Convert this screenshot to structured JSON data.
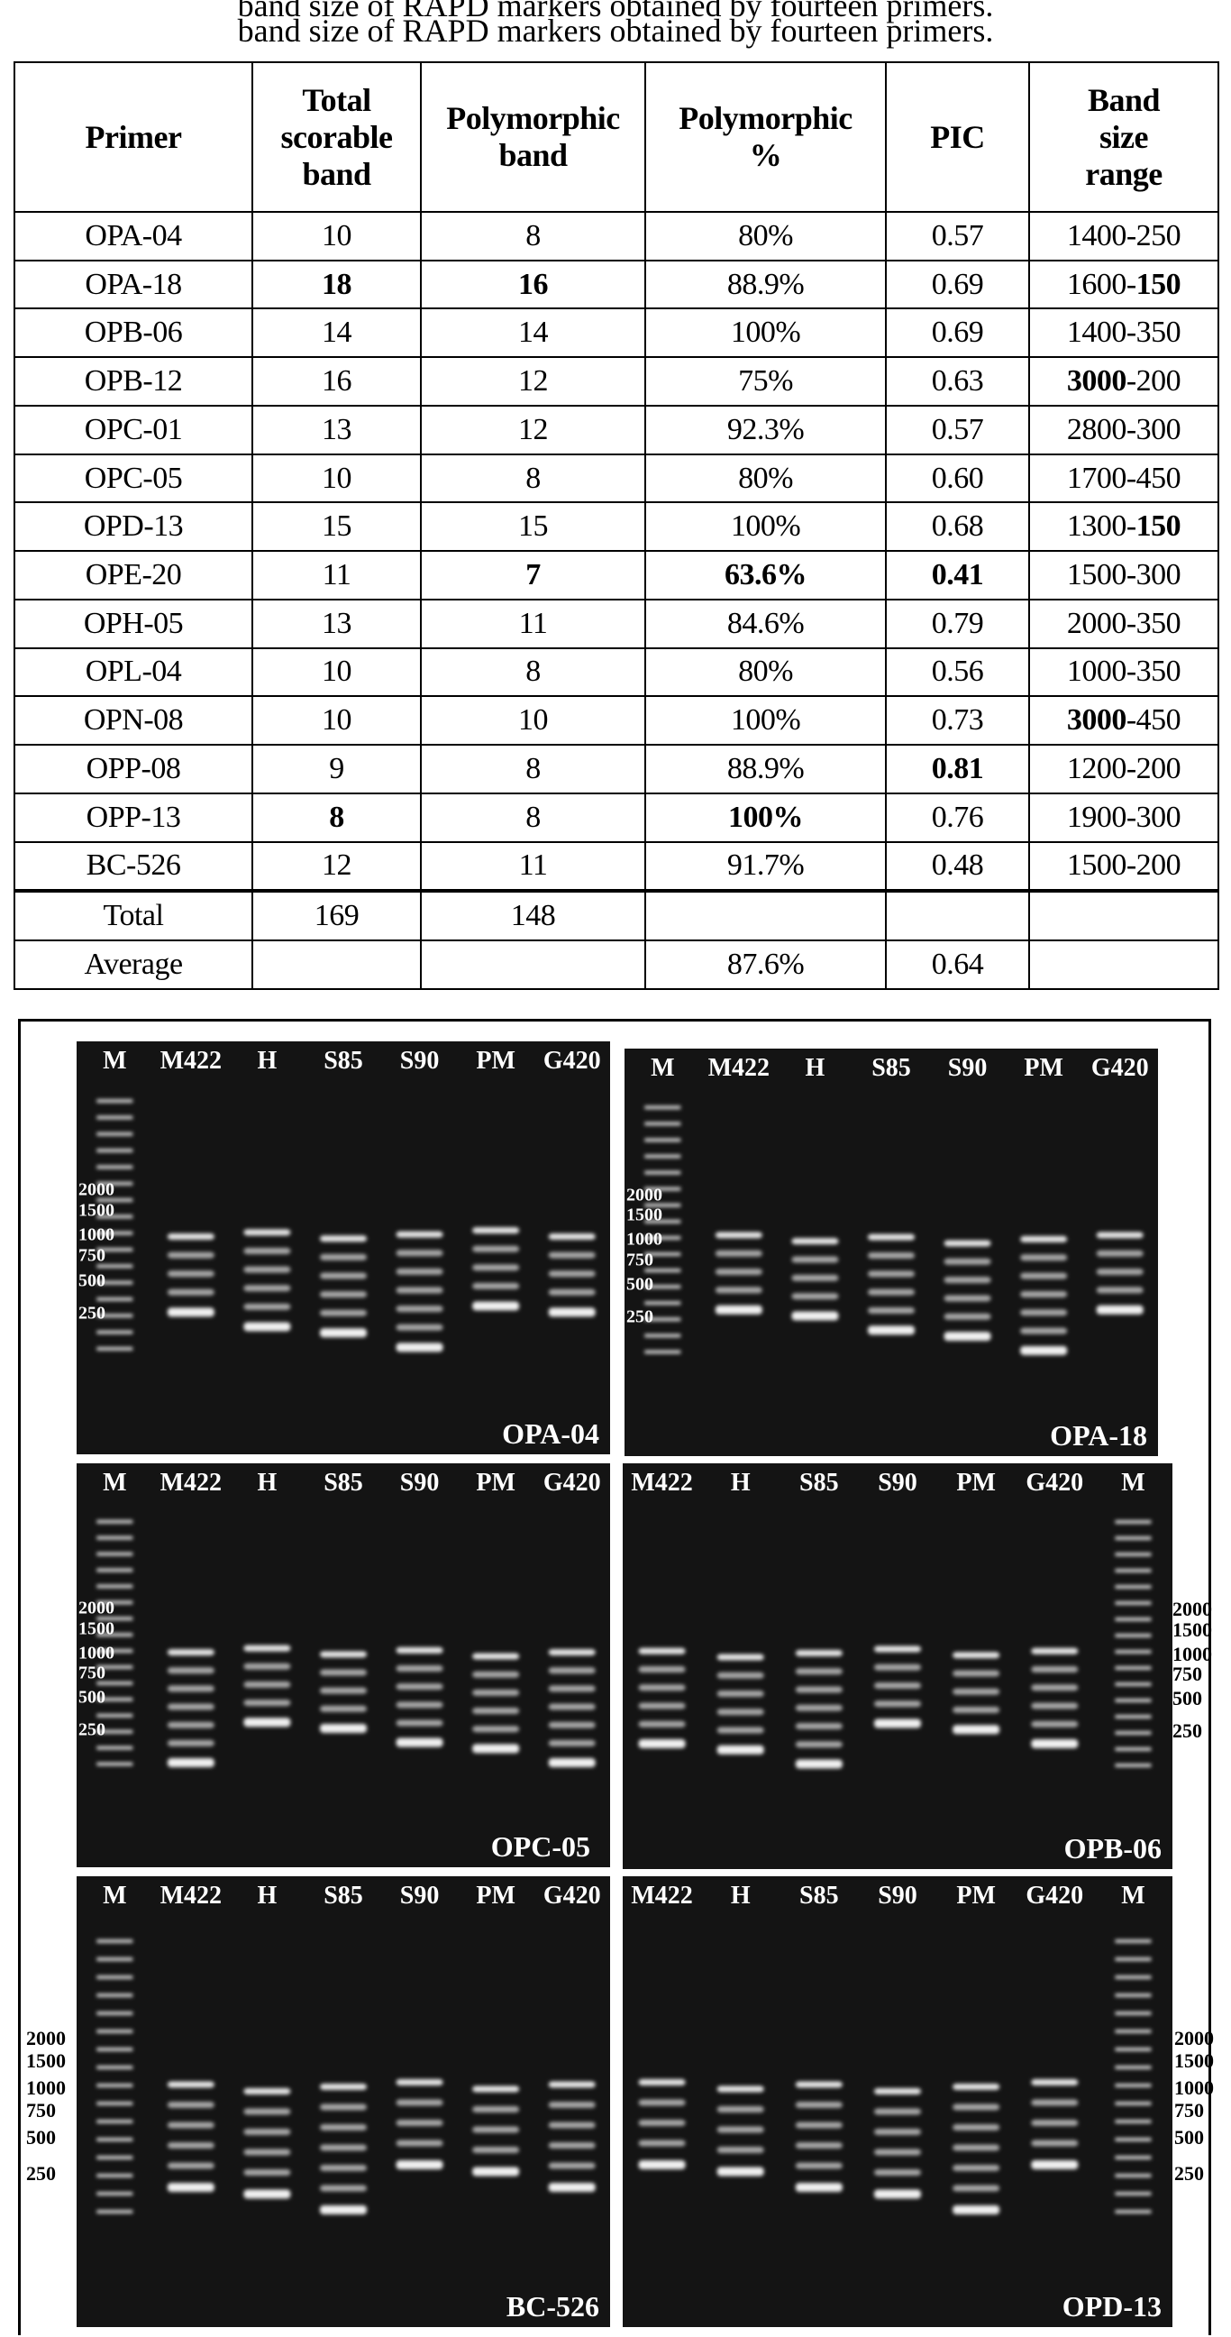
{
  "caption": {
    "line1": "band size of RAPD markers obtained by fourteen primers.",
    "line2": "band size of RAPD markers obtained by fourteen primers."
  },
  "table": {
    "headers": [
      "Primer",
      "Total scorable band",
      "Polymorphic band",
      "Polymorphic %",
      "PIC",
      "Band size range"
    ],
    "rows": [
      {
        "primer": "OPA-04",
        "total": "10",
        "poly": "8",
        "pct": "80%",
        "pic": "0.57",
        "range": "1400-250",
        "bold": []
      },
      {
        "primer": "OPA-18",
        "total": "18",
        "poly": "16",
        "pct": "88.9%",
        "pic": "0.69",
        "range": "1600-150",
        "bold": [
          "total",
          "poly",
          "range_low"
        ]
      },
      {
        "primer": "OPB-06",
        "total": "14",
        "poly": "14",
        "pct": "100%",
        "pic": "0.69",
        "range": "1400-350",
        "bold": []
      },
      {
        "primer": "OPB-12",
        "total": "16",
        "poly": "12",
        "pct": "75%",
        "pic": "0.63",
        "range": "3000-200",
        "bold": [
          "range_high"
        ]
      },
      {
        "primer": "OPC-01",
        "total": "13",
        "poly": "12",
        "pct": "92.3%",
        "pic": "0.57",
        "range": "2800-300",
        "bold": []
      },
      {
        "primer": "OPC-05",
        "total": "10",
        "poly": "8",
        "pct": "80%",
        "pic": "0.60",
        "range": "1700-450",
        "bold": []
      },
      {
        "primer": "OPD-13",
        "total": "15",
        "poly": "15",
        "pct": "100%",
        "pic": "0.68",
        "range": "1300-150",
        "bold": [
          "range_low"
        ]
      },
      {
        "primer": "OPE-20",
        "total": "11",
        "poly": "7",
        "pct": "63.6%",
        "pic": "0.41",
        "range": "1500-300",
        "bold": [
          "poly",
          "pct",
          "pic"
        ]
      },
      {
        "primer": "OPH-05",
        "total": "13",
        "poly": "11",
        "pct": "84.6%",
        "pic": "0.79",
        "range": "2000-350",
        "bold": []
      },
      {
        "primer": "OPL-04",
        "total": "10",
        "poly": "8",
        "pct": "80%",
        "pic": "0.56",
        "range": "1000-350",
        "bold": []
      },
      {
        "primer": "OPN-08",
        "total": "10",
        "poly": "10",
        "pct": "100%",
        "pic": "0.73",
        "range": "3000-450",
        "bold": [
          "range_high"
        ]
      },
      {
        "primer": "OPP-08",
        "total": "9",
        "poly": "8",
        "pct": "88.9%",
        "pic": "0.81",
        "range": "1200-200",
        "bold": [
          "pic"
        ]
      },
      {
        "primer": "OPP-13",
        "total": "8",
        "poly": "8",
        "pct": "100%",
        "pic": "0.76",
        "range": "1900-300",
        "bold": [
          "total",
          "pct"
        ]
      },
      {
        "primer": "BC-526",
        "total": "12",
        "poly": "11",
        "pct": "91.7%",
        "pic": "0.48",
        "range": "1500-200",
        "bold": []
      }
    ],
    "total": {
      "label": "Total",
      "total": "169",
      "poly": "148",
      "pct": "",
      "pic": "",
      "range": ""
    },
    "average": {
      "label": "Average",
      "total": "",
      "poly": "",
      "pct": "87.6%",
      "pic": "0.64",
      "range": ""
    }
  },
  "gels": {
    "ladder_sizes": [
      "2000",
      "1500",
      "1000",
      "750",
      "500",
      "250"
    ],
    "panels": [
      {
        "primer": "OPA-04",
        "lanes": [
          "M",
          "M422",
          "H",
          "S85",
          "S90",
          "PM",
          "G420"
        ]
      },
      {
        "primer": "OPA-18",
        "lanes": [
          "M",
          "M422",
          "H",
          "S85",
          "S90",
          "PM",
          "G420"
        ]
      },
      {
        "primer": "OPC-05",
        "lanes": [
          "M",
          "M422",
          "H",
          "S85",
          "S90",
          "PM",
          "G420"
        ]
      },
      {
        "primer": "OPB-06",
        "lanes": [
          "M422",
          "H",
          "S85",
          "S90",
          "PM",
          "G420",
          "M"
        ]
      },
      {
        "primer": "BC-526",
        "lanes": [
          "M",
          "M422",
          "H",
          "S85",
          "S90",
          "PM",
          "G420"
        ]
      },
      {
        "primer": "OPD-13",
        "lanes": [
          "M422",
          "H",
          "S85",
          "S90",
          "PM",
          "G420",
          "M"
        ]
      }
    ]
  }
}
